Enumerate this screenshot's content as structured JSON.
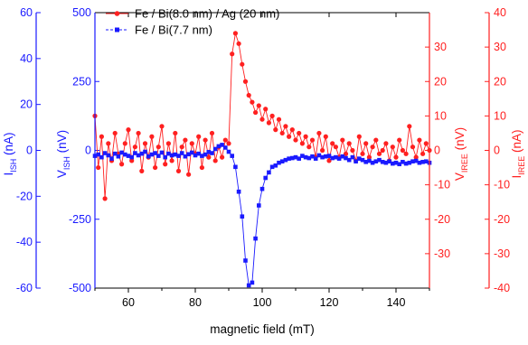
{
  "chart_data": {
    "type": "line",
    "x": {
      "label": "magnetic field (mT)",
      "range": [
        50,
        150
      ],
      "ticks": [
        60,
        80,
        100,
        120,
        140
      ]
    },
    "y_axes": [
      {
        "id": "I_ISH",
        "label_main": "I",
        "label_sub": "ISH",
        "label_unit": " (nA)",
        "range": [
          -60,
          60
        ],
        "ticks": [
          -60,
          -40,
          -20,
          0,
          20,
          40,
          60
        ],
        "color": "#1a1aff",
        "side": "left-outer"
      },
      {
        "id": "V_ISH",
        "label_main": "V",
        "label_sub": "ISH",
        "label_unit": " (nV)",
        "range": [
          -500,
          500
        ],
        "ticks": [
          -500,
          -250,
          0,
          250,
          500
        ],
        "color": "#1a1aff",
        "side": "left-inner"
      },
      {
        "id": "V_IREE",
        "label_main": "V",
        "label_sub": "IREE",
        "label_unit": " (nV)",
        "range": [
          -40,
          40
        ],
        "ticks": [
          -30,
          -20,
          -10,
          0,
          10,
          20,
          30
        ],
        "color": "#ff2020",
        "side": "right-inner"
      },
      {
        "id": "I_IREE",
        "label_main": "I",
        "label_sub": "IREE",
        "label_unit": " (nA)",
        "range": [
          -40,
          40
        ],
        "ticks": [
          -40,
          -30,
          -20,
          -10,
          0,
          10,
          20,
          30,
          40
        ],
        "color": "#ff2020",
        "side": "right-outer"
      }
    ],
    "series": [
      {
        "name": "Fe / Bi(8.0 nm) / Ag (20 nm)",
        "axis": "V_IREE",
        "color": "#ff2020",
        "marker": "circle",
        "x": [
          50,
          51,
          52,
          53,
          54,
          55,
          56,
          57,
          58,
          59,
          60,
          61,
          62,
          63,
          64,
          65,
          66,
          67,
          68,
          69,
          70,
          71,
          72,
          73,
          74,
          75,
          76,
          77,
          78,
          79,
          80,
          81,
          82,
          83,
          84,
          85,
          86,
          87,
          88,
          89,
          90,
          91,
          92,
          93,
          94,
          95,
          96,
          97,
          98,
          99,
          100,
          101,
          102,
          103,
          104,
          105,
          106,
          107,
          108,
          109,
          110,
          111,
          112,
          113,
          114,
          115,
          116,
          117,
          118,
          119,
          120,
          121,
          122,
          123,
          124,
          125,
          126,
          127,
          128,
          129,
          130,
          131,
          132,
          133,
          134,
          135,
          136,
          137,
          138,
          139,
          140,
          141,
          142,
          143,
          144,
          145,
          146,
          147,
          148,
          149,
          150
        ],
        "y": [
          10,
          -5,
          4,
          -14,
          2,
          -3,
          5,
          -1,
          -4,
          2,
          6,
          -3,
          1,
          5,
          -6,
          2,
          -2,
          4,
          -5,
          1,
          7,
          -4,
          2,
          -3,
          5,
          -6,
          1,
          3,
          -7,
          2,
          -1,
          4,
          -5,
          3,
          -2,
          5,
          -3,
          1,
          -2,
          3,
          2,
          28,
          34,
          31,
          25,
          20,
          16,
          14,
          11,
          13,
          9,
          12,
          8,
          10,
          6,
          9,
          5,
          7,
          4,
          6,
          3,
          5,
          2,
          4,
          1,
          3,
          -2,
          5,
          0,
          4,
          -3,
          2,
          1,
          -2,
          3,
          -1,
          2,
          0,
          -3,
          4,
          -1,
          2,
          -2,
          1,
          3,
          -1,
          0,
          2,
          -3,
          1,
          -2,
          3,
          0,
          -1,
          7,
          1,
          -2,
          3,
          -1,
          2,
          0
        ]
      },
      {
        "name": "Fe / Bi(7.7 nm)",
        "axis": "V_ISH",
        "color": "#1a1aff",
        "marker": "square",
        "x": [
          50,
          51,
          52,
          53,
          54,
          55,
          56,
          57,
          58,
          59,
          60,
          61,
          62,
          63,
          64,
          65,
          66,
          67,
          68,
          69,
          70,
          71,
          72,
          73,
          74,
          75,
          76,
          77,
          78,
          79,
          80,
          81,
          82,
          83,
          84,
          85,
          86,
          87,
          88,
          89,
          90,
          91,
          92,
          93,
          94,
          95,
          96,
          97,
          98,
          99,
          100,
          101,
          102,
          103,
          104,
          105,
          106,
          107,
          108,
          109,
          110,
          111,
          112,
          113,
          114,
          115,
          116,
          117,
          118,
          119,
          120,
          121,
          122,
          123,
          124,
          125,
          126,
          127,
          128,
          129,
          130,
          131,
          132,
          133,
          134,
          135,
          136,
          137,
          138,
          139,
          140,
          141,
          142,
          143,
          144,
          145,
          146,
          147,
          148,
          149,
          150
        ],
        "y": [
          -20,
          -15,
          -25,
          -10,
          -18,
          -30,
          -12,
          -22,
          -8,
          -15,
          -20,
          -25,
          -10,
          -18,
          -12,
          -5,
          -22,
          -15,
          -10,
          -20,
          -8,
          -25,
          -12,
          -18,
          -15,
          -20,
          -10,
          -22,
          -14,
          -8,
          -18,
          -12,
          -20,
          -15,
          -6,
          -10,
          5,
          15,
          20,
          10,
          -5,
          -20,
          -60,
          -150,
          -240,
          -400,
          -490,
          -480,
          -320,
          -200,
          -140,
          -100,
          -80,
          -60,
          -55,
          -45,
          -40,
          -35,
          -30,
          -28,
          -25,
          -30,
          -20,
          -25,
          -28,
          -22,
          -30,
          -18,
          -25,
          -22,
          -20,
          -28,
          -25,
          -30,
          -22,
          -28,
          -35,
          -25,
          -40,
          -30,
          -35,
          -42,
          -38,
          -45,
          -40,
          -35,
          -42,
          -45,
          -40,
          -48,
          -45,
          -50,
          -42,
          -48,
          -45,
          -40,
          -38,
          -45,
          -42,
          -40,
          -45
        ]
      }
    ],
    "legend_placement": "top-center"
  }
}
